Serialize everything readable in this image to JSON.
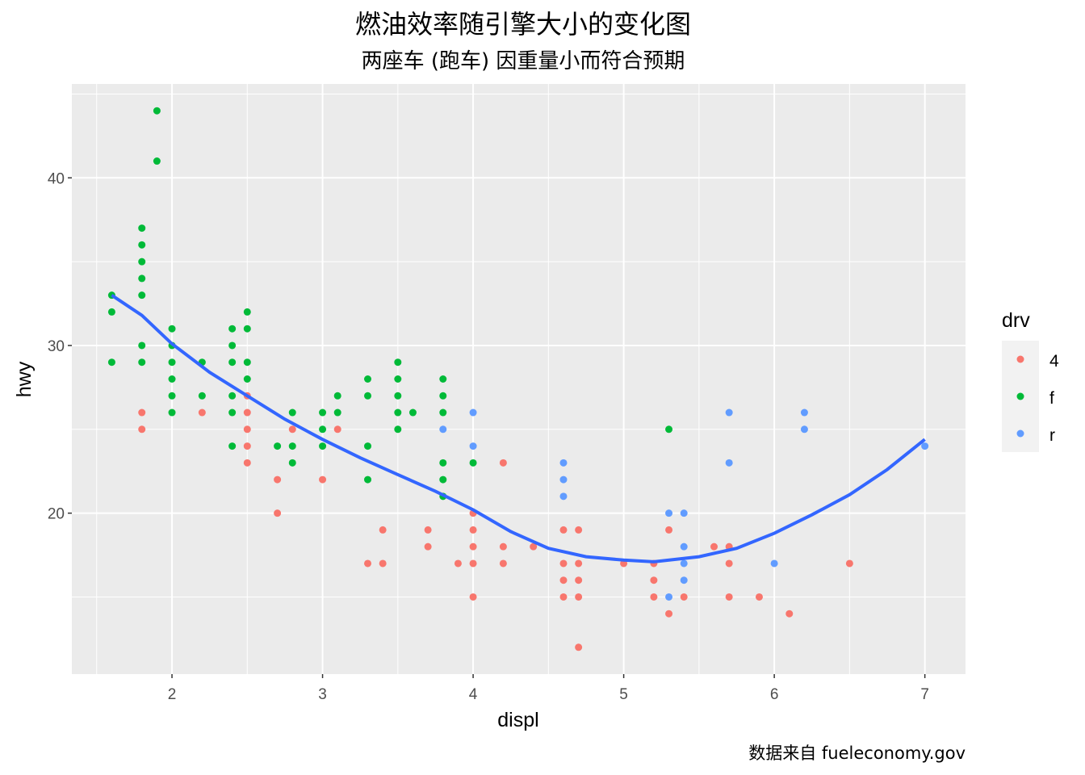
{
  "chart_data": {
    "type": "scatter",
    "title": "燃油效率随引擎大小的变化图",
    "subtitle": "两座车 (跑车) 因重量小而符合预期",
    "caption": "数据来自 fueleconomy.gov",
    "xlabel": "displ",
    "ylabel": "hwy",
    "xlim": [
      1.335,
      7.27
    ],
    "ylim": [
      10.4,
      45.6
    ],
    "xticks": [
      2,
      3,
      4,
      5,
      6,
      7
    ],
    "yticks": [
      20,
      30,
      40
    ],
    "legend": {
      "title": "drv",
      "position": "right",
      "entries": [
        "4",
        "f",
        "r"
      ]
    },
    "colors": {
      "4": "#F8766D",
      "f": "#00BA38",
      "r": "#619CFF",
      "smooth": "#3366FF",
      "panel": "#EBEBEB"
    },
    "series": [
      {
        "name": "4",
        "points": [
          [
            1.8,
            26
          ],
          [
            1.8,
            25
          ],
          [
            2.2,
            26
          ],
          [
            2.5,
            27
          ],
          [
            2.5,
            26
          ],
          [
            2.5,
            25
          ],
          [
            2.5,
            24
          ],
          [
            2.5,
            23
          ],
          [
            2.7,
            22
          ],
          [
            2.7,
            20
          ],
          [
            2.8,
            25
          ],
          [
            3.0,
            22
          ],
          [
            3.1,
            25
          ],
          [
            3.3,
            17
          ],
          [
            3.4,
            19
          ],
          [
            3.4,
            17
          ],
          [
            3.7,
            19
          ],
          [
            3.7,
            18
          ],
          [
            3.9,
            17
          ],
          [
            4.0,
            20
          ],
          [
            4.0,
            19
          ],
          [
            4.0,
            18
          ],
          [
            4.0,
            17
          ],
          [
            4.0,
            15
          ],
          [
            4.2,
            23
          ],
          [
            4.2,
            18
          ],
          [
            4.2,
            17
          ],
          [
            4.4,
            18
          ],
          [
            4.6,
            19
          ],
          [
            4.6,
            17
          ],
          [
            4.6,
            16
          ],
          [
            4.6,
            15
          ],
          [
            4.7,
            19
          ],
          [
            4.7,
            17
          ],
          [
            4.7,
            16
          ],
          [
            4.7,
            15
          ],
          [
            4.7,
            12
          ],
          [
            5.0,
            17
          ],
          [
            5.2,
            17
          ],
          [
            5.2,
            16
          ],
          [
            5.2,
            15
          ],
          [
            5.3,
            19
          ],
          [
            5.3,
            14
          ],
          [
            5.4,
            15
          ],
          [
            5.6,
            18
          ],
          [
            5.7,
            18
          ],
          [
            5.7,
            17
          ],
          [
            5.7,
            15
          ],
          [
            5.9,
            15
          ],
          [
            6.1,
            14
          ],
          [
            6.5,
            17
          ]
        ]
      },
      {
        "name": "f",
        "points": [
          [
            1.6,
            33
          ],
          [
            1.6,
            32
          ],
          [
            1.6,
            29
          ],
          [
            1.8,
            37
          ],
          [
            1.8,
            36
          ],
          [
            1.8,
            35
          ],
          [
            1.8,
            34
          ],
          [
            1.8,
            33
          ],
          [
            1.8,
            30
          ],
          [
            1.8,
            29
          ],
          [
            1.9,
            44
          ],
          [
            1.9,
            41
          ],
          [
            2.0,
            31
          ],
          [
            2.0,
            30
          ],
          [
            2.0,
            29
          ],
          [
            2.0,
            28
          ],
          [
            2.0,
            27
          ],
          [
            2.0,
            26
          ],
          [
            2.2,
            29
          ],
          [
            2.2,
            27
          ],
          [
            2.4,
            31
          ],
          [
            2.4,
            30
          ],
          [
            2.4,
            29
          ],
          [
            2.4,
            27
          ],
          [
            2.4,
            26
          ],
          [
            2.4,
            24
          ],
          [
            2.5,
            32
          ],
          [
            2.5,
            31
          ],
          [
            2.5,
            29
          ],
          [
            2.5,
            28
          ],
          [
            2.7,
            24
          ],
          [
            2.8,
            26
          ],
          [
            2.8,
            24
          ],
          [
            2.8,
            23
          ],
          [
            3.0,
            26
          ],
          [
            3.0,
            25
          ],
          [
            3.0,
            24
          ],
          [
            3.1,
            27
          ],
          [
            3.1,
            26
          ],
          [
            3.3,
            28
          ],
          [
            3.3,
            27
          ],
          [
            3.3,
            24
          ],
          [
            3.3,
            22
          ],
          [
            3.5,
            29
          ],
          [
            3.5,
            28
          ],
          [
            3.5,
            27
          ],
          [
            3.5,
            26
          ],
          [
            3.5,
            25
          ],
          [
            3.6,
            26
          ],
          [
            3.8,
            28
          ],
          [
            3.8,
            27
          ],
          [
            3.8,
            26
          ],
          [
            3.8,
            23
          ],
          [
            3.8,
            22
          ],
          [
            3.8,
            21
          ],
          [
            4.0,
            23
          ],
          [
            5.3,
            25
          ]
        ]
      },
      {
        "name": "r",
        "points": [
          [
            3.8,
            25
          ],
          [
            4.0,
            26
          ],
          [
            4.0,
            24
          ],
          [
            4.6,
            23
          ],
          [
            4.6,
            22
          ],
          [
            4.6,
            21
          ],
          [
            5.3,
            20
          ],
          [
            5.3,
            15
          ],
          [
            5.4,
            20
          ],
          [
            5.4,
            18
          ],
          [
            5.4,
            17
          ],
          [
            5.4,
            16
          ],
          [
            5.7,
            26
          ],
          [
            5.7,
            23
          ],
          [
            6.0,
            17
          ],
          [
            6.2,
            26
          ],
          [
            6.2,
            25
          ],
          [
            7.0,
            24
          ]
        ]
      }
    ],
    "smooth": [
      [
        1.6,
        33.0
      ],
      [
        1.8,
        31.8
      ],
      [
        2.0,
        30.1
      ],
      [
        2.25,
        28.4
      ],
      [
        2.5,
        27.0
      ],
      [
        2.75,
        25.6
      ],
      [
        3.0,
        24.4
      ],
      [
        3.25,
        23.3
      ],
      [
        3.5,
        22.3
      ],
      [
        3.75,
        21.3
      ],
      [
        4.0,
        20.2
      ],
      [
        4.25,
        18.9
      ],
      [
        4.5,
        17.9
      ],
      [
        4.75,
        17.4
      ],
      [
        5.0,
        17.2
      ],
      [
        5.2,
        17.1
      ],
      [
        5.5,
        17.4
      ],
      [
        5.75,
        17.9
      ],
      [
        6.0,
        18.8
      ],
      [
        6.25,
        19.9
      ],
      [
        6.5,
        21.1
      ],
      [
        6.75,
        22.6
      ],
      [
        7.0,
        24.4
      ]
    ]
  }
}
